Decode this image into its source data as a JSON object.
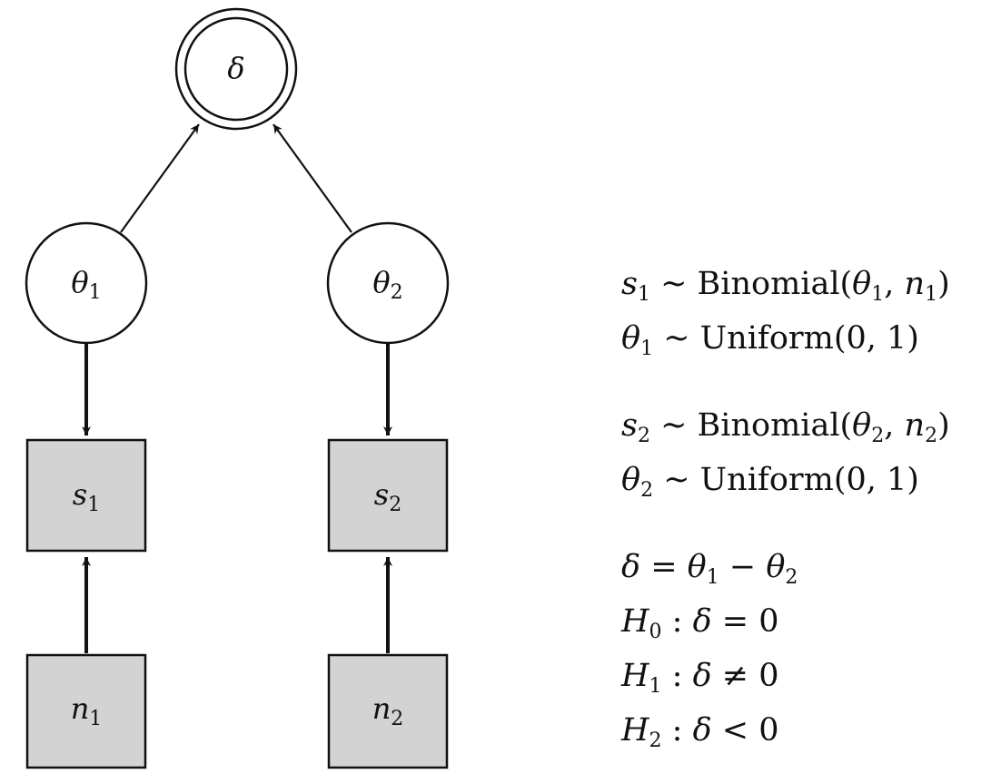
{
  "diagram": {
    "nodes": {
      "delta": {
        "symbol": "δ",
        "subscript": "",
        "shape": "double-circle",
        "role": "deterministic"
      },
      "theta1": {
        "symbol": "θ",
        "subscript": "1",
        "shape": "circle",
        "role": "latent"
      },
      "theta2": {
        "symbol": "θ",
        "subscript": "2",
        "shape": "circle",
        "role": "latent"
      },
      "s1": {
        "symbol": "s",
        "subscript": "1",
        "shape": "square",
        "role": "observed"
      },
      "s2": {
        "symbol": "s",
        "subscript": "2",
        "shape": "square",
        "role": "observed"
      },
      "n1": {
        "symbol": "n",
        "subscript": "1",
        "shape": "square",
        "role": "observed"
      },
      "n2": {
        "symbol": "n",
        "subscript": "2",
        "shape": "square",
        "role": "observed"
      }
    },
    "edges": [
      {
        "from": "theta1",
        "to": "delta"
      },
      {
        "from": "theta2",
        "to": "delta"
      },
      {
        "from": "theta1",
        "to": "s1"
      },
      {
        "from": "theta2",
        "to": "s2"
      },
      {
        "from": "n1",
        "to": "s1"
      },
      {
        "from": "n2",
        "to": "s2"
      }
    ],
    "colors": {
      "observed_fill": "#d3d3d3",
      "stroke": "#111111"
    }
  },
  "equations": {
    "group1": {
      "line1": {
        "lhs": "s",
        "lhs_sub": "1",
        "rel": " ~ ",
        "fn": "Binomial(",
        "a1": "θ",
        "a1_sub": "1",
        "sep": ", ",
        "a2": "n",
        "a2_sub": "1",
        "close": ")"
      },
      "line2": {
        "lhs": "θ",
        "lhs_sub": "1",
        "rel": " ~ ",
        "fn": "Uniform(0, 1)"
      }
    },
    "group2": {
      "line1": {
        "lhs": "s",
        "lhs_sub": "2",
        "rel": " ~ ",
        "fn": "Binomial(",
        "a1": "θ",
        "a1_sub": "2",
        "sep": ", ",
        "a2": "n",
        "a2_sub": "2",
        "close": ")"
      },
      "line2": {
        "lhs": "θ",
        "lhs_sub": "2",
        "rel": " ~ ",
        "fn": "Uniform(0, 1)"
      }
    },
    "group3": {
      "def": {
        "lhs": "δ",
        "eq": " = ",
        "t1": "θ",
        "t1_sub": "1",
        "minus": " − ",
        "t2": "θ",
        "t2_sub": "2"
      },
      "h0": {
        "h": "H",
        "h_sub": "0",
        "colon": " : ",
        "d": "δ",
        "rel": " = 0"
      },
      "h1": {
        "h": "H",
        "h_sub": "1",
        "colon": " : ",
        "d": "δ",
        "rel": " ≠ 0"
      },
      "h2": {
        "h": "H",
        "h_sub": "2",
        "colon": " : ",
        "d": "δ",
        "rel": " < 0"
      }
    }
  }
}
